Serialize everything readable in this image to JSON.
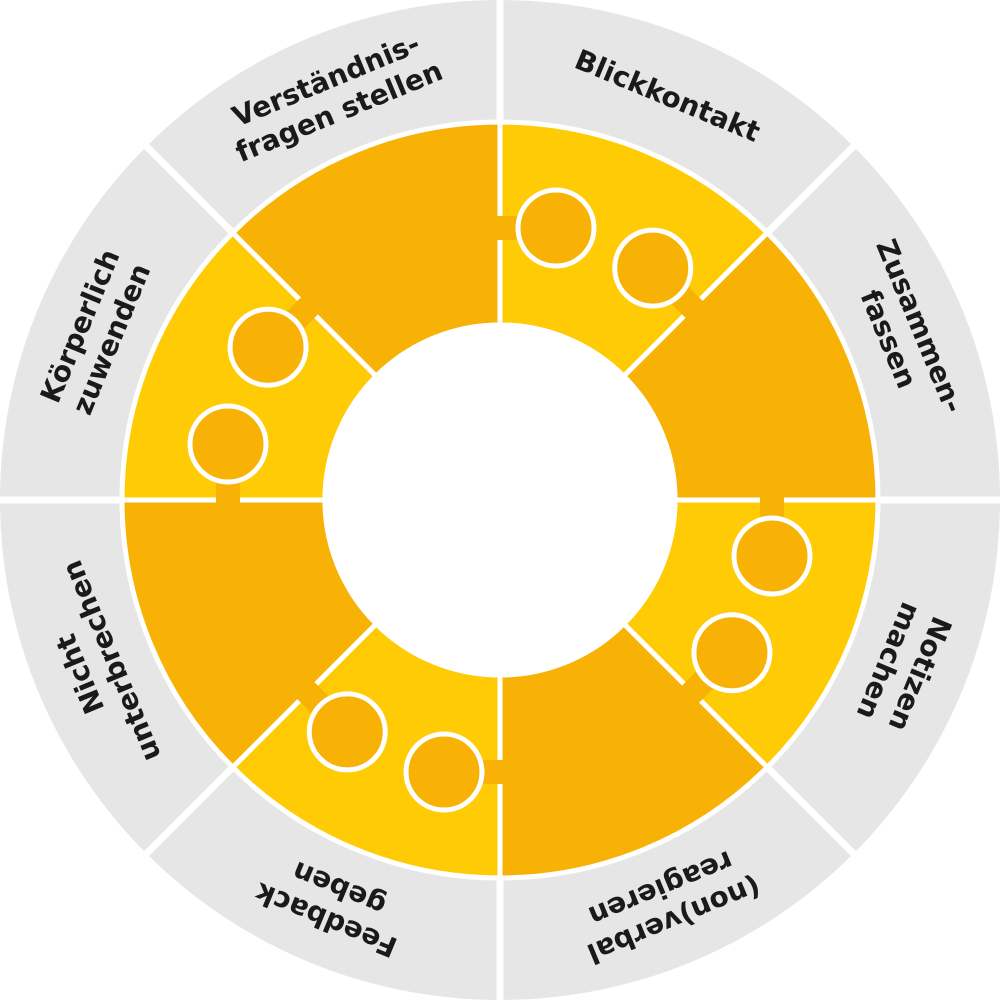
{
  "colors": {
    "ring": "#e6e6e6",
    "divider": "#ffffff",
    "piece_light": "#fecb05",
    "piece_dark": "#f8b105",
    "outline": "#ffffff",
    "center": "#ffffff",
    "text": "#1a1a1a"
  },
  "segments": [
    {
      "id": "blickkontakt",
      "lines": [
        "Blickkontakt"
      ]
    },
    {
      "id": "zusammenfassen",
      "lines": [
        "Zusammen-",
        "fassen"
      ]
    },
    {
      "id": "notizen-machen",
      "lines": [
        "Notizen",
        "machen"
      ]
    },
    {
      "id": "nonverbal-reagieren",
      "lines": [
        "(non)verbal",
        "reagieren"
      ]
    },
    {
      "id": "feedback-geben",
      "lines": [
        "Feedback",
        "geben"
      ]
    },
    {
      "id": "nicht-unterbrechen",
      "lines": [
        "Nicht",
        "unterbrechen"
      ]
    },
    {
      "id": "koerperlich-zuwenden",
      "lines": [
        "Körperlich",
        "zuwenden"
      ]
    },
    {
      "id": "verstaendnisfragen-stellen",
      "lines": [
        "Verständnis-",
        "fragen stellen"
      ]
    }
  ]
}
